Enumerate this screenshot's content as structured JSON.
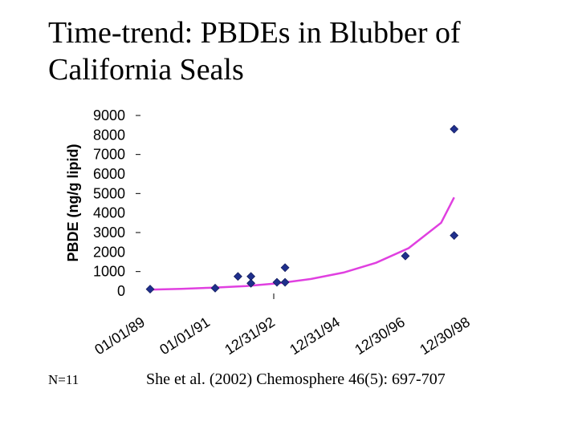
{
  "title_line1": "Time-trend: PBDEs in Blubber of",
  "title_line2": "California Seals",
  "n_note": "N=11",
  "citation": "She et al. (2002) Chemosphere 46(5): 697-707",
  "chart_data": {
    "type": "scatter",
    "title": "",
    "ylabel": "PBDE (ng/g lipid)",
    "xlabel": "",
    "ylim": [
      0,
      9000
    ],
    "yticks": [
      0,
      1000,
      2000,
      3000,
      4000,
      5000,
      6000,
      7000,
      8000,
      9000
    ],
    "xtick_labels": [
      "01/01/89",
      "01/01/91",
      "12/31/92",
      "12/31/94",
      "12/30/96",
      "12/30/98"
    ],
    "xtick_years": [
      1989.0,
      1991.0,
      1993.0,
      1995.0,
      1997.0,
      1999.0
    ],
    "xlim_years": [
      1989.0,
      1999.0
    ],
    "marker_color": "#1f2f8c",
    "trend_color": "#e040e0",
    "series": [
      {
        "points": [
          {
            "x": 1989.05,
            "y": 100
          },
          {
            "x": 1991.05,
            "y": 150
          },
          {
            "x": 1991.75,
            "y": 750
          },
          {
            "x": 1992.15,
            "y": 750
          },
          {
            "x": 1992.15,
            "y": 400
          },
          {
            "x": 1992.95,
            "y": 450
          },
          {
            "x": 1993.2,
            "y": 1200
          },
          {
            "x": 1993.2,
            "y": 450
          },
          {
            "x": 1996.9,
            "y": 1800
          },
          {
            "x": 1998.4,
            "y": 8300
          },
          {
            "x": 1998.4,
            "y": 2850
          }
        ]
      }
    ],
    "trendline": {
      "type": "exponential",
      "x": [
        1989.0,
        1990.0,
        1991.0,
        1992.0,
        1993.0,
        1994.0,
        1995.0,
        1996.0,
        1997.0,
        1998.0,
        1998.4
      ],
      "y": [
        75,
        115,
        175,
        260,
        400,
        620,
        950,
        1450,
        2200,
        3500,
        4800
      ]
    }
  }
}
